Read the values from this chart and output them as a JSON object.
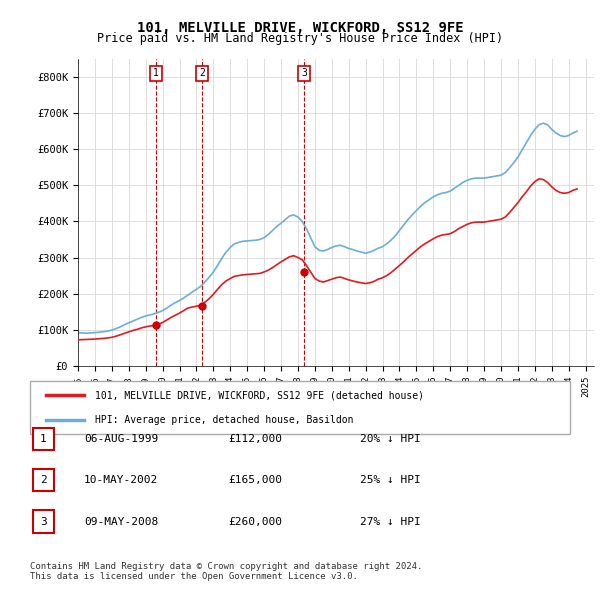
{
  "title": "101, MELVILLE DRIVE, WICKFORD, SS12 9FE",
  "subtitle": "Price paid vs. HM Land Registry's House Price Index (HPI)",
  "ylabel_ticks": [
    "£0",
    "£100K",
    "£200K",
    "£300K",
    "£400K",
    "£500K",
    "£600K",
    "£700K",
    "£800K"
  ],
  "ytick_values": [
    0,
    100000,
    200000,
    300000,
    400000,
    500000,
    600000,
    700000,
    800000
  ],
  "ylim": [
    0,
    850000
  ],
  "xlim_start": 1995.0,
  "xlim_end": 2025.5,
  "hpi_color": "#6baed6",
  "price_color": "#e41a1c",
  "marker_color": "#cc0000",
  "sale_points": [
    {
      "year": 1999.6,
      "price": 112000,
      "label": "1"
    },
    {
      "year": 2002.35,
      "price": 165000,
      "label": "2"
    },
    {
      "year": 2008.35,
      "price": 260000,
      "label": "3"
    }
  ],
  "legend_entries": [
    "101, MELVILLE DRIVE, WICKFORD, SS12 9FE (detached house)",
    "HPI: Average price, detached house, Basildon"
  ],
  "table_rows": [
    {
      "num": "1",
      "date": "06-AUG-1999",
      "price": "£112,000",
      "note": "20% ↓ HPI"
    },
    {
      "num": "2",
      "date": "10-MAY-2002",
      "price": "£165,000",
      "note": "25% ↓ HPI"
    },
    {
      "num": "3",
      "date": "09-MAY-2008",
      "price": "£260,000",
      "note": "27% ↓ HPI"
    }
  ],
  "footer": "Contains HM Land Registry data © Crown copyright and database right 2024.\nThis data is licensed under the Open Government Licence v3.0.",
  "hpi_data_x": [
    1995.0,
    1995.25,
    1995.5,
    1995.75,
    1996.0,
    1996.25,
    1996.5,
    1996.75,
    1997.0,
    1997.25,
    1997.5,
    1997.75,
    1998.0,
    1998.25,
    1998.5,
    1998.75,
    1999.0,
    1999.25,
    1999.5,
    1999.75,
    2000.0,
    2000.25,
    2000.5,
    2000.75,
    2001.0,
    2001.25,
    2001.5,
    2001.75,
    2002.0,
    2002.25,
    2002.5,
    2002.75,
    2003.0,
    2003.25,
    2003.5,
    2003.75,
    2004.0,
    2004.25,
    2004.5,
    2004.75,
    2005.0,
    2005.25,
    2005.5,
    2005.75,
    2006.0,
    2006.25,
    2006.5,
    2006.75,
    2007.0,
    2007.25,
    2007.5,
    2007.75,
    2008.0,
    2008.25,
    2008.5,
    2008.75,
    2009.0,
    2009.25,
    2009.5,
    2009.75,
    2010.0,
    2010.25,
    2010.5,
    2010.75,
    2011.0,
    2011.25,
    2011.5,
    2011.75,
    2012.0,
    2012.25,
    2012.5,
    2012.75,
    2013.0,
    2013.25,
    2013.5,
    2013.75,
    2014.0,
    2014.25,
    2014.5,
    2014.75,
    2015.0,
    2015.25,
    2015.5,
    2015.75,
    2016.0,
    2016.25,
    2016.5,
    2016.75,
    2017.0,
    2017.25,
    2017.5,
    2017.75,
    2018.0,
    2018.25,
    2018.5,
    2018.75,
    2019.0,
    2019.25,
    2019.5,
    2019.75,
    2020.0,
    2020.25,
    2020.5,
    2020.75,
    2021.0,
    2021.25,
    2021.5,
    2021.75,
    2022.0,
    2022.25,
    2022.5,
    2022.75,
    2023.0,
    2023.25,
    2023.5,
    2023.75,
    2024.0,
    2024.25,
    2024.5
  ],
  "hpi_data_y": [
    92000,
    91000,
    90500,
    91000,
    92000,
    93000,
    94500,
    96000,
    99000,
    103000,
    108000,
    114000,
    119000,
    124000,
    129000,
    134000,
    138000,
    141000,
    144000,
    148000,
    153000,
    160000,
    168000,
    175000,
    181000,
    188000,
    196000,
    204000,
    212000,
    220000,
    232000,
    245000,
    260000,
    278000,
    298000,
    315000,
    328000,
    338000,
    342000,
    345000,
    346000,
    347000,
    348000,
    350000,
    355000,
    364000,
    375000,
    386000,
    395000,
    405000,
    415000,
    418000,
    412000,
    400000,
    380000,
    355000,
    330000,
    320000,
    318000,
    322000,
    328000,
    332000,
    334000,
    330000,
    325000,
    322000,
    318000,
    315000,
    312000,
    315000,
    320000,
    326000,
    330000,
    338000,
    348000,
    360000,
    375000,
    390000,
    405000,
    418000,
    430000,
    442000,
    452000,
    460000,
    468000,
    474000,
    478000,
    480000,
    484000,
    492000,
    500000,
    508000,
    514000,
    518000,
    520000,
    520000,
    520000,
    522000,
    524000,
    526000,
    528000,
    535000,
    548000,
    562000,
    578000,
    598000,
    618000,
    638000,
    655000,
    668000,
    672000,
    668000,
    655000,
    645000,
    638000,
    635000,
    638000,
    645000,
    650000
  ],
  "price_data_x": [
    1995.0,
    1995.25,
    1995.5,
    1995.75,
    1996.0,
    1996.25,
    1996.5,
    1996.75,
    1997.0,
    1997.25,
    1997.5,
    1997.75,
    1998.0,
    1998.25,
    1998.5,
    1998.75,
    1999.0,
    1999.25,
    1999.5,
    1999.75,
    2000.0,
    2000.25,
    2000.5,
    2000.75,
    2001.0,
    2001.25,
    2001.5,
    2001.75,
    2002.0,
    2002.25,
    2002.5,
    2002.75,
    2003.0,
    2003.25,
    2003.5,
    2003.75,
    2004.0,
    2004.25,
    2004.5,
    2004.75,
    2005.0,
    2005.25,
    2005.5,
    2005.75,
    2006.0,
    2006.25,
    2006.5,
    2006.75,
    2007.0,
    2007.25,
    2007.5,
    2007.75,
    2008.0,
    2008.25,
    2008.5,
    2008.75,
    2009.0,
    2009.25,
    2009.5,
    2009.75,
    2010.0,
    2010.25,
    2010.5,
    2010.75,
    2011.0,
    2011.25,
    2011.5,
    2011.75,
    2012.0,
    2012.25,
    2012.5,
    2012.75,
    2013.0,
    2013.25,
    2013.5,
    2013.75,
    2014.0,
    2014.25,
    2014.5,
    2014.75,
    2015.0,
    2015.25,
    2015.5,
    2015.75,
    2016.0,
    2016.25,
    2016.5,
    2016.75,
    2017.0,
    2017.25,
    2017.5,
    2017.75,
    2018.0,
    2018.25,
    2018.5,
    2018.75,
    2019.0,
    2019.25,
    2019.5,
    2019.75,
    2020.0,
    2020.25,
    2020.5,
    2020.75,
    2021.0,
    2021.25,
    2021.5,
    2021.75,
    2022.0,
    2022.25,
    2022.5,
    2022.75,
    2023.0,
    2023.25,
    2023.5,
    2023.75,
    2024.0,
    2024.25,
    2024.5
  ],
  "price_data_y": [
    72000,
    72500,
    73000,
    73500,
    74000,
    75000,
    76000,
    77000,
    79000,
    82000,
    86000,
    90000,
    94000,
    98000,
    101000,
    105000,
    108000,
    110000,
    112000,
    115000,
    120000,
    127000,
    134000,
    140000,
    146000,
    153000,
    160000,
    163000,
    165000,
    168000,
    176000,
    186000,
    198000,
    212000,
    225000,
    235000,
    242000,
    248000,
    250000,
    252000,
    253000,
    254000,
    255000,
    256000,
    260000,
    265000,
    272000,
    280000,
    288000,
    295000,
    302000,
    305000,
    300000,
    294000,
    278000,
    260000,
    242000,
    235000,
    232000,
    236000,
    240000,
    244000,
    246000,
    242000,
    238000,
    235000,
    232000,
    230000,
    228000,
    230000,
    234000,
    240000,
    244000,
    250000,
    258000,
    268000,
    278000,
    288000,
    300000,
    310000,
    320000,
    330000,
    338000,
    345000,
    352000,
    358000,
    362000,
    364000,
    366000,
    372000,
    380000,
    386000,
    392000,
    396000,
    398000,
    398000,
    398000,
    400000,
    402000,
    404000,
    406000,
    412000,
    424000,
    438000,
    452000,
    468000,
    482000,
    498000,
    510000,
    518000,
    516000,
    508000,
    496000,
    486000,
    480000,
    478000,
    480000,
    486000,
    490000
  ],
  "vline_years": [
    1999.6,
    2002.35,
    2008.35
  ],
  "vline_color": "#cc0000",
  "bg_color": "#ffffff",
  "grid_color": "#dddddd",
  "box_color": "#cc0000"
}
